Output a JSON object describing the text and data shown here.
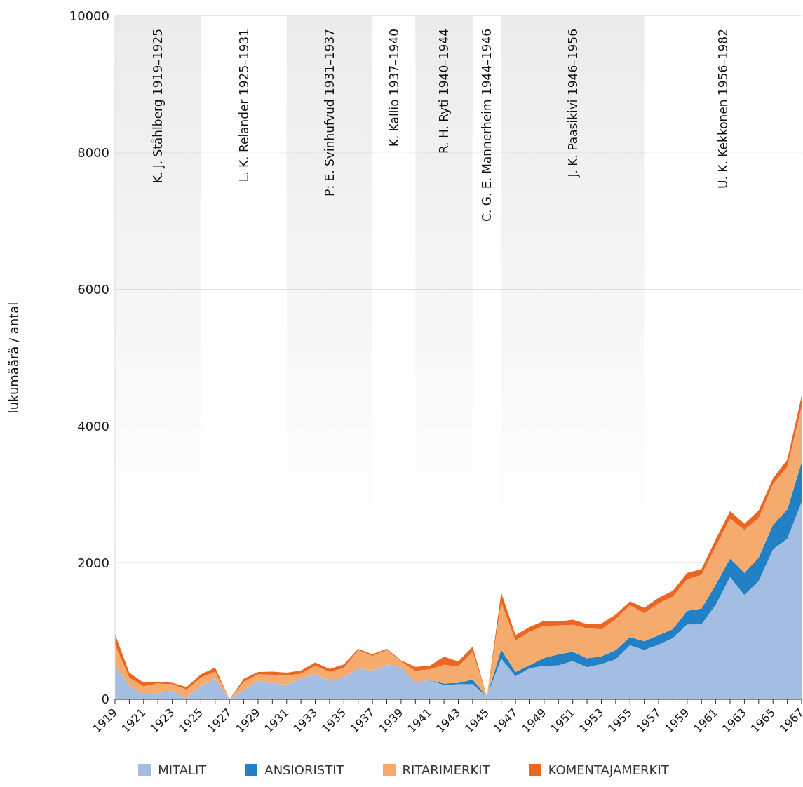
{
  "chart_data": {
    "type": "area",
    "stacked": true,
    "ylabel": "lukumäärä / antal",
    "x": [
      1919,
      1920,
      1921,
      1922,
      1923,
      1924,
      1925,
      1926,
      1927,
      1928,
      1929,
      1930,
      1931,
      1932,
      1933,
      1934,
      1935,
      1936,
      1937,
      1938,
      1939,
      1940,
      1941,
      1942,
      1943,
      1944,
      1945,
      1946,
      1947,
      1948,
      1949,
      1950,
      1951,
      1952,
      1953,
      1954,
      1955,
      1956,
      1957,
      1958,
      1959,
      1960,
      1961,
      1962,
      1963,
      1964,
      1965,
      1966,
      1967
    ],
    "series": [
      {
        "name": "MITALIT",
        "color": "#a4bde2",
        "values": [
          490,
          200,
          70,
          90,
          120,
          25,
          195,
          300,
          0,
          135,
          270,
          230,
          215,
          300,
          370,
          270,
          320,
          455,
          420,
          500,
          470,
          245,
          285,
          205,
          220,
          220,
          40,
          595,
          335,
          455,
          490,
          495,
          560,
          470,
          515,
          585,
          790,
          720,
          800,
          895,
          1095,
          1095,
          1385,
          1790,
          1525,
          1730,
          2195,
          2350,
          2885
        ]
      },
      {
        "name": "ANSIORISTIT",
        "color": "#2281c4",
        "values": [
          0,
          0,
          0,
          0,
          0,
          0,
          0,
          0,
          0,
          0,
          0,
          0,
          0,
          0,
          0,
          0,
          0,
          0,
          0,
          0,
          0,
          0,
          0,
          25,
          20,
          70,
          0,
          135,
          65,
          45,
          115,
          165,
          135,
          130,
          115,
          135,
          125,
          130,
          140,
          135,
          200,
          235,
          295,
          270,
          325,
          345,
          360,
          430,
          585
        ]
      },
      {
        "name": "RITARIMERKIT",
        "color": "#f5ab6e",
        "values": [
          310,
          115,
          120,
          140,
          100,
          115,
          120,
          105,
          0,
          120,
          95,
          130,
          135,
          75,
          120,
          130,
          140,
          265,
          215,
          220,
          85,
          170,
          155,
          275,
          240,
          405,
          0,
          690,
          460,
          490,
          470,
          420,
          395,
          440,
          395,
          450,
          460,
          410,
          465,
          475,
          460,
          490,
          560,
          585,
          630,
          575,
          595,
          620,
          815
        ]
      },
      {
        "name": "KOMENTAJAMERKIT",
        "color": "#ec6622",
        "values": [
          155,
          75,
          55,
          30,
          20,
          40,
          50,
          60,
          0,
          45,
          35,
          45,
          40,
          45,
          50,
          45,
          50,
          20,
          25,
          20,
          15,
          60,
          50,
          120,
          75,
          75,
          0,
          140,
          80,
          70,
          75,
          60,
          75,
          60,
          85,
          70,
          60,
          80,
          80,
          85,
          95,
          85,
          105,
          110,
          90,
          115,
          85,
          110,
          155
        ]
      }
    ],
    "xlim": [
      1919,
      1967
    ],
    "xticks": [
      1919,
      {
        "value": 1920,
        "label": null
      },
      1921,
      {
        "value": 1922,
        "label": null
      },
      1923,
      {
        "value": 1924,
        "label": null
      },
      1925,
      {
        "value": 1926,
        "label": null
      },
      1927,
      {
        "value": 1928,
        "label": null
      },
      1929,
      {
        "value": 1930,
        "label": null
      },
      1931,
      {
        "value": 1932,
        "label": null
      },
      1933,
      {
        "value": 1934,
        "label": null
      },
      1935,
      {
        "value": 1936,
        "label": null
      },
      1937,
      {
        "value": 1938,
        "label": null
      },
      1939,
      {
        "value": 1940,
        "label": null
      },
      1941,
      {
        "value": 1942,
        "label": null
      },
      1943,
      {
        "value": 1944,
        "label": null
      },
      1945,
      {
        "value": 1946,
        "label": null
      },
      1947,
      {
        "value": 1948,
        "label": null
      },
      1949,
      {
        "value": 1950,
        "label": null
      },
      1951,
      {
        "value": 1952,
        "label": null
      },
      1953,
      {
        "value": 1954,
        "label": null
      },
      1955,
      {
        "value": 1956,
        "label": null
      },
      1957,
      {
        "value": 1958,
        "label": null
      },
      1959,
      {
        "value": 1960,
        "label": null
      },
      1961,
      {
        "value": 1962,
        "label": null
      },
      1963,
      {
        "value": 1964,
        "label": null
      },
      1965,
      {
        "value": 1966,
        "label": null
      },
      1967
    ],
    "ylim": [
      0,
      10000
    ],
    "yticks": [
      0,
      2000,
      4000,
      6000,
      8000,
      10000
    ],
    "grid": "y",
    "legend": "bottom",
    "bands": [
      {
        "axis": "x",
        "from": 1919,
        "to": 1925,
        "label": "K. J. Ståhlberg 1919–1925",
        "color": "#ebebeb"
      },
      {
        "axis": "x",
        "from": 1925,
        "to": 1931,
        "label": "L. K. Relander 1925–1931",
        "color": "#ffffff"
      },
      {
        "axis": "x",
        "from": 1931,
        "to": 1937,
        "label": "P: E. Svinhufvud 1931–1937",
        "color": "#ebebeb"
      },
      {
        "axis": "x",
        "from": 1937,
        "to": 1940,
        "label": "K. Kallio 1937–1940",
        "color": "#ffffff"
      },
      {
        "axis": "x",
        "from": 1940,
        "to": 1944,
        "label": "R. H. Ryti 1940–1944",
        "color": "#ebebeb"
      },
      {
        "axis": "x",
        "from": 1944,
        "to": 1946,
        "label": "C. G. E. Mannerheim 1944–1946",
        "color": "#ffffff"
      },
      {
        "axis": "x",
        "from": 1946,
        "to": 1956,
        "label": "J. K. Paasikivi 1946–1956",
        "color": "#ebebeb"
      },
      {
        "axis": "x",
        "from": 1956,
        "to": 1967,
        "label": "U. K. Kekkonen 1956–1982",
        "color": "#ffffff"
      }
    ]
  }
}
